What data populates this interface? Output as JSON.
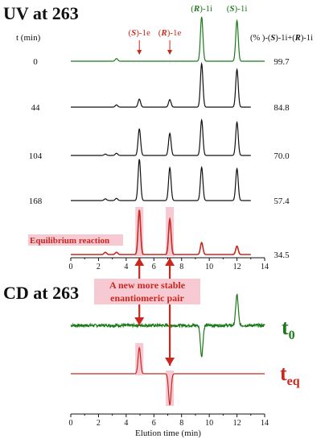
{
  "colors": {
    "green": "#1a7a1a",
    "red": "#c8281e",
    "black": "#111111",
    "highlight": "#f6c9d3"
  },
  "text": {
    "uv_header": "UV at 263",
    "cd_header": "CD at 263",
    "t_label": "t (min)",
    "percent_label": "(% )-(S)-1i+(R)-1i",
    "equilibrium_label": "Equilibrium reaction",
    "new_pair_line1": "A new more stable",
    "new_pair_line2": "enantiomeric pair",
    "t0_label": "t",
    "t0_sub": "0",
    "teq_label": "t",
    "teq_sub": "eq"
  },
  "peak_labels": [
    {
      "prefix": "(",
      "ital": "S",
      "suffix": ")-1e",
      "color": "red",
      "at": 4.95
    },
    {
      "prefix": "(",
      "ital": "R",
      "suffix": ")-1e",
      "color": "red",
      "at": 7.15
    },
    {
      "prefix": "(",
      "ital": "R",
      "suffix": ")-1i",
      "color": "green",
      "at": 9.45
    },
    {
      "prefix": "(",
      "ital": "S",
      "suffix": ")-1i",
      "color": "green",
      "at": 12.0
    }
  ],
  "chart_data": [
    {
      "type": "line",
      "title": "UV at 263",
      "xlabel": "",
      "xlim": [
        0,
        14
      ],
      "xticks": [
        0,
        2,
        4,
        6,
        8,
        10,
        12,
        14
      ],
      "series": [
        {
          "time": "0",
          "percent": "99.7",
          "color": "green",
          "peaks": [
            {
              "x": 3.3,
              "h": 0.06
            },
            {
              "x": 9.45,
              "h": 1.0
            },
            {
              "x": 12.0,
              "h": 0.92
            }
          ]
        },
        {
          "time": "44",
          "percent": "84.8",
          "color": "black",
          "peaks": [
            {
              "x": 3.3,
              "h": 0.05
            },
            {
              "x": 4.95,
              "h": 0.18
            },
            {
              "x": 7.15,
              "h": 0.17
            },
            {
              "x": 9.45,
              "h": 0.98
            },
            {
              "x": 12.0,
              "h": 0.85
            }
          ]
        },
        {
          "time": "104",
          "percent": "70.0",
          "color": "black",
          "peaks": [
            {
              "x": 2.5,
              "h": 0.03
            },
            {
              "x": 3.3,
              "h": 0.05
            },
            {
              "x": 4.95,
              "h": 0.6
            },
            {
              "x": 7.15,
              "h": 0.5
            },
            {
              "x": 9.45,
              "h": 0.8
            },
            {
              "x": 12.0,
              "h": 0.75
            }
          ]
        },
        {
          "time": "168",
          "percent": "57.4",
          "color": "black",
          "peaks": [
            {
              "x": 2.5,
              "h": 0.04
            },
            {
              "x": 3.3,
              "h": 0.05
            },
            {
              "x": 4.95,
              "h": 0.93
            },
            {
              "x": 7.15,
              "h": 0.74
            },
            {
              "x": 9.45,
              "h": 0.75
            },
            {
              "x": 12.0,
              "h": 0.72
            }
          ]
        },
        {
          "time": "",
          "percent": "34.5",
          "color": "red",
          "peaks": [
            {
              "x": 2.5,
              "h": 0.05
            },
            {
              "x": 3.3,
              "h": 0.05
            },
            {
              "x": 4.95,
              "h": 1.0
            },
            {
              "x": 7.15,
              "h": 0.8
            },
            {
              "x": 9.45,
              "h": 0.27
            },
            {
              "x": 12.0,
              "h": 0.19
            }
          ]
        }
      ]
    },
    {
      "type": "line",
      "title": "CD at 263",
      "xlabel": "Elution time (min)",
      "xlim": [
        0,
        14
      ],
      "xticks": [
        0,
        2,
        4,
        6,
        8,
        10,
        12,
        14
      ],
      "series": [
        {
          "label": "t0",
          "color": "green",
          "noise": true,
          "peaks": [
            {
              "x": 9.45,
              "h": -1.0
            },
            {
              "x": 12.0,
              "h": 1.0
            }
          ]
        },
        {
          "label": "teq",
          "color": "red",
          "noise": false,
          "peaks": [
            {
              "x": 4.95,
              "h": 0.75
            },
            {
              "x": 7.15,
              "h": -0.9
            }
          ]
        }
      ]
    }
  ]
}
